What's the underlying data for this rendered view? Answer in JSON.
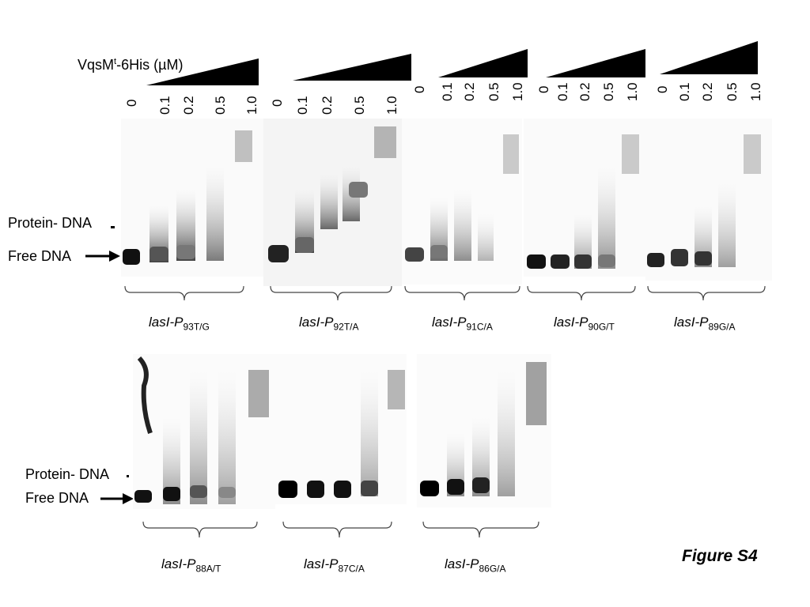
{
  "header": {
    "protein_prefix": "VqsM",
    "protein_sup": "t",
    "protein_suffix": "-6His (µM)"
  },
  "concentrations": [
    "0",
    "0.1",
    "0.2",
    "0.5",
    "1.0"
  ],
  "side_labels": {
    "protein_dna": "Protein- DNA",
    "free_dna": "Free DNA"
  },
  "row1": [
    {
      "name": "lasI-P",
      "sub": "93T/G"
    },
    {
      "name": "lasI-P",
      "sub": "92T/A"
    },
    {
      "name": "lasI-P",
      "sub": "91C/A"
    },
    {
      "name": "lasI-P",
      "sub": "90G/T"
    },
    {
      "name": "lasI-P",
      "sub": "89G/A"
    }
  ],
  "row2": [
    {
      "name": "lasI-P",
      "sub": "88A/T"
    },
    {
      "name": "lasI-P",
      "sub": "87C/A"
    },
    {
      "name": "lasI-P",
      "sub": "86G/A"
    }
  ],
  "figure_label": "Figure S4"
}
